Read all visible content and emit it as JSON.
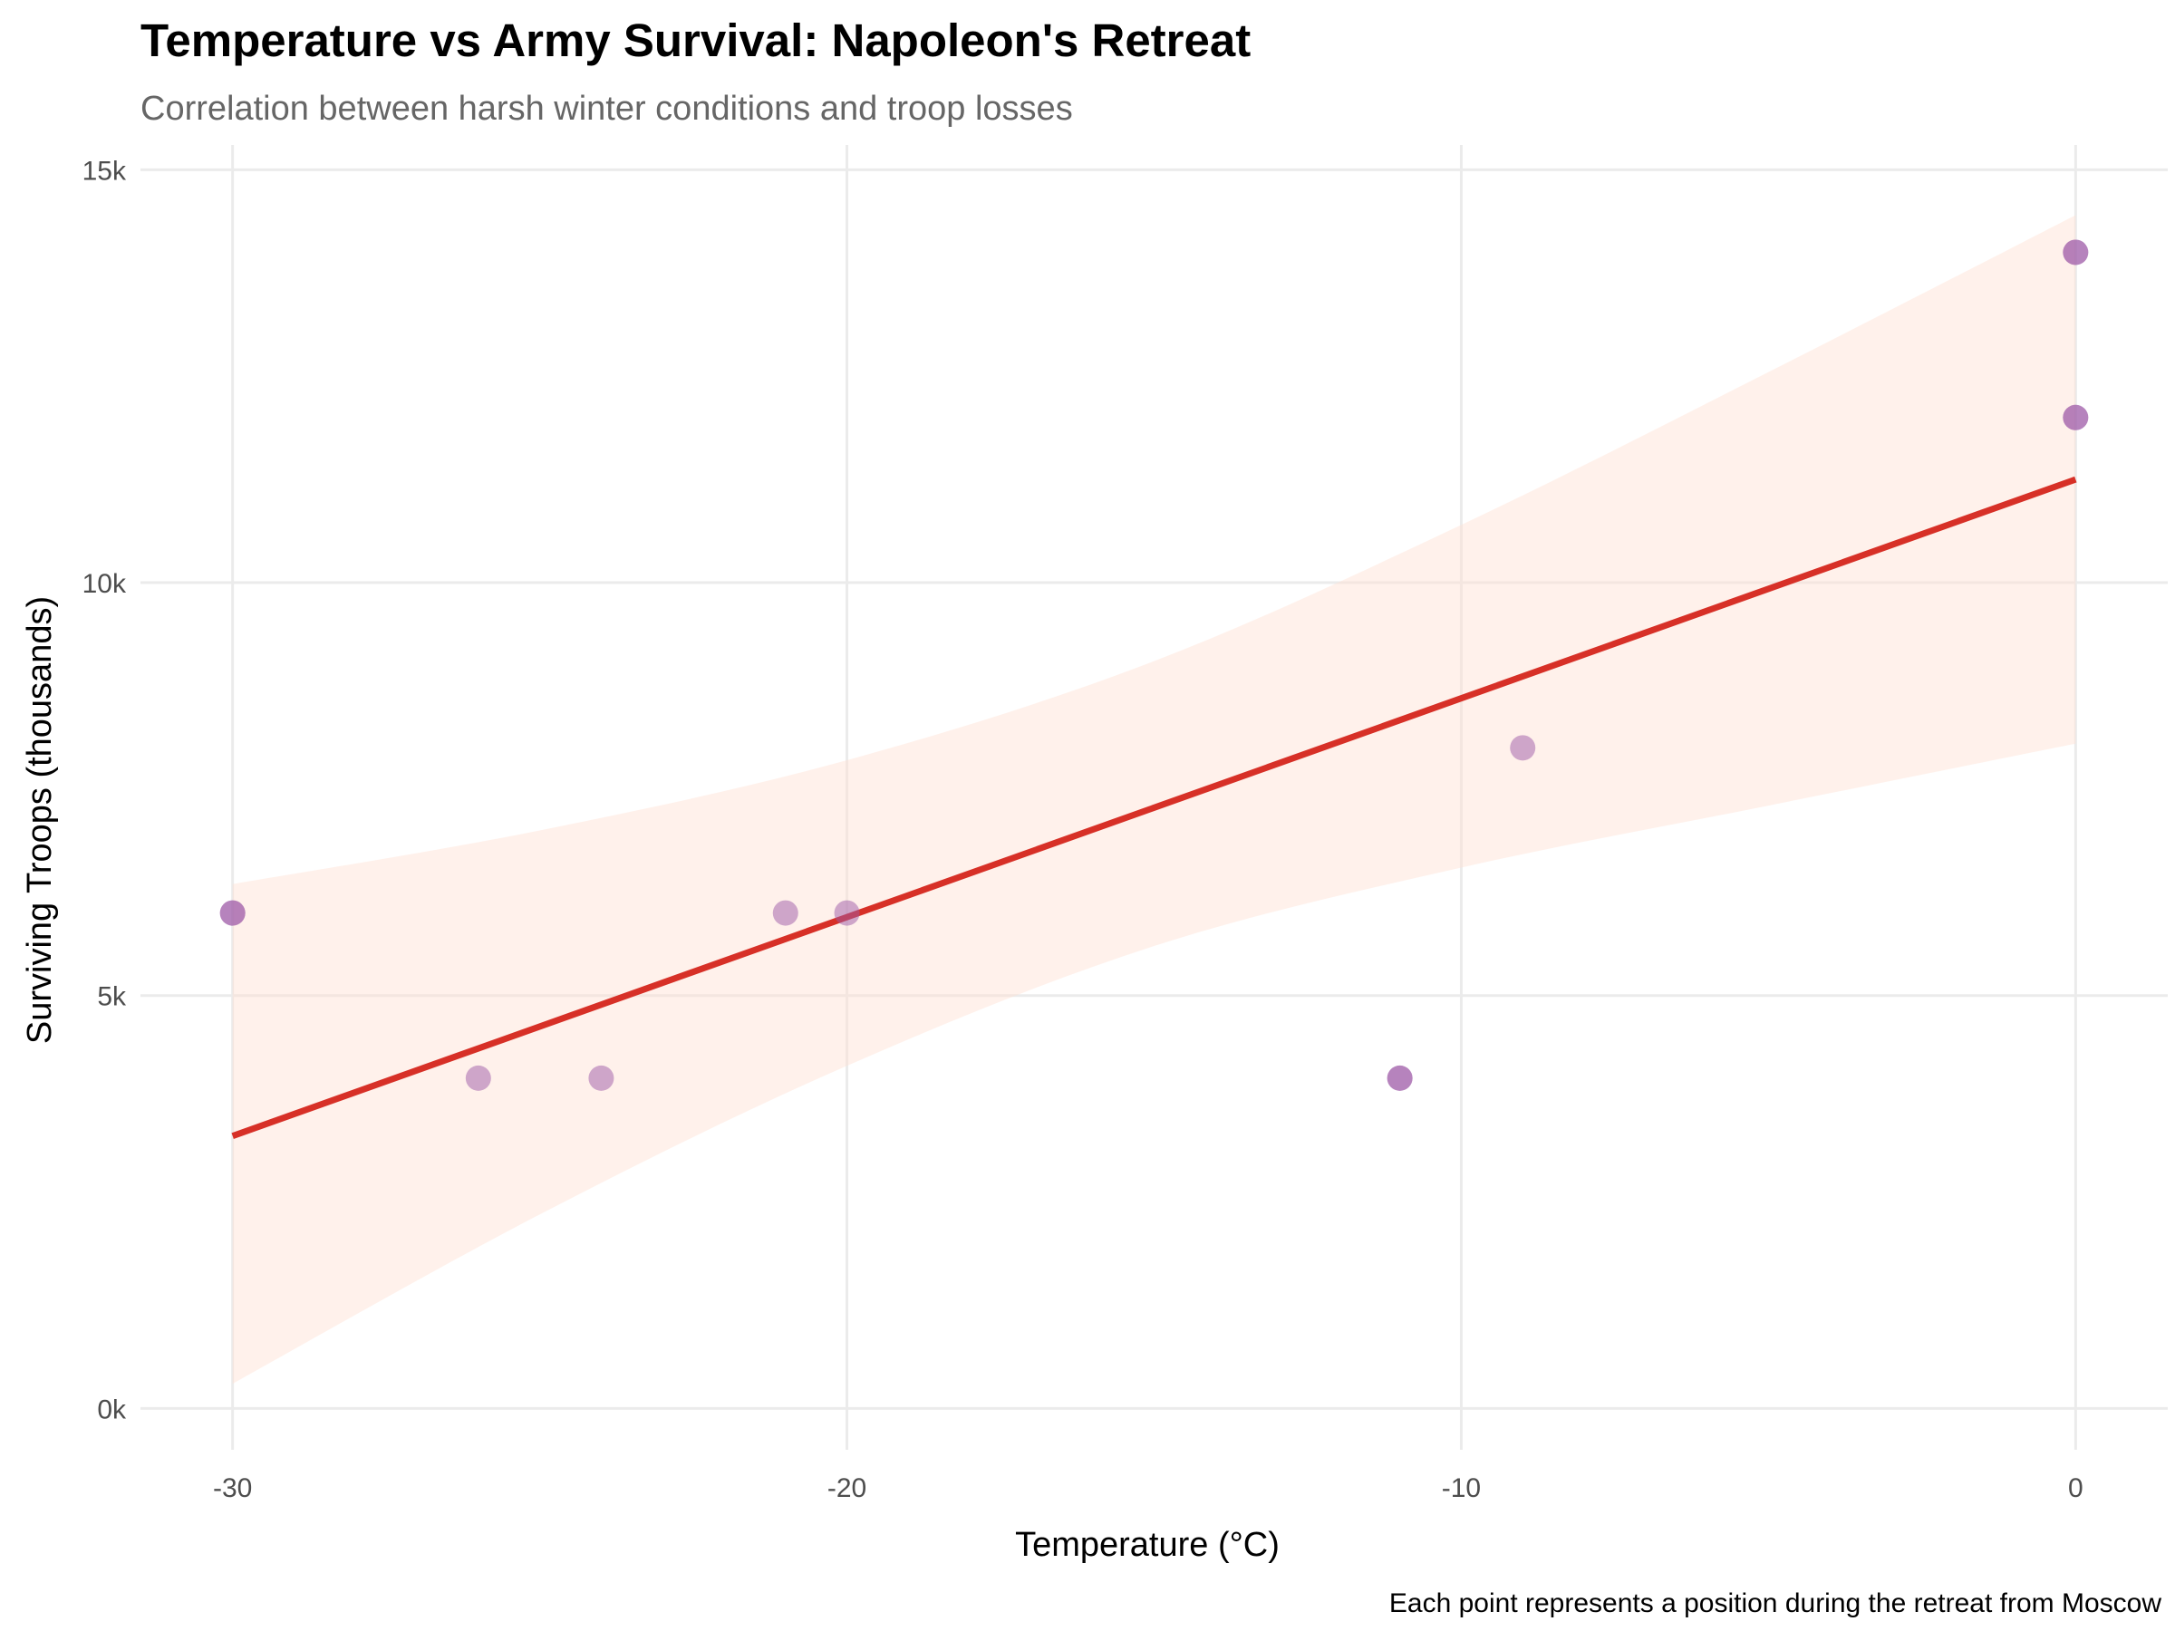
{
  "chart_data": {
    "type": "scatter",
    "title": "Temperature vs Army Survival: Napoleon's Retreat",
    "subtitle": "Correlation between harsh winter conditions and troop losses",
    "xlabel": "Temperature (°C)",
    "ylabel": "Surviving Troops (thousands)",
    "caption": "Each point represents a position during the retreat from Moscow",
    "xlim": [
      -31.5,
      1.5
    ],
    "ylim": [
      -500,
      15300
    ],
    "x_ticks": [
      {
        "value": -30,
        "label": "-30"
      },
      {
        "value": -20,
        "label": "-20"
      },
      {
        "value": -10,
        "label": "-10"
      },
      {
        "value": 0,
        "label": "0"
      }
    ],
    "y_ticks": [
      {
        "value": 0,
        "label": "0k"
      },
      {
        "value": 5000,
        "label": "5k"
      },
      {
        "value": 10000,
        "label": "10k"
      },
      {
        "value": 15000,
        "label": "15k"
      }
    ],
    "grid": true,
    "points": [
      {
        "x": 0,
        "y": 14000
      },
      {
        "x": 0,
        "y": 14000
      },
      {
        "x": 0,
        "y": 12000
      },
      {
        "x": 0,
        "y": 12000
      },
      {
        "x": -9,
        "y": 8000
      },
      {
        "x": -21,
        "y": 6000
      },
      {
        "x": -20,
        "y": 6000
      },
      {
        "x": -11,
        "y": 4000
      },
      {
        "x": -11,
        "y": 4000
      },
      {
        "x": -26,
        "y": 4000
      },
      {
        "x": -24,
        "y": 4000
      },
      {
        "x": -30,
        "y": 6000
      },
      {
        "x": -30,
        "y": 6000
      }
    ],
    "trend": {
      "method": "linear",
      "x": [
        -30,
        0
      ],
      "y": [
        3300,
        11250
      ]
    },
    "confidence_band": [
      {
        "x": -30,
        "lower": 300,
        "upper": 6350
      },
      {
        "x": -25,
        "lower": 2350,
        "upper": 7000
      },
      {
        "x": -20,
        "lower": 4150,
        "upper": 7850
      },
      {
        "x": -15,
        "lower": 5600,
        "upper": 9050
      },
      {
        "x": -10,
        "lower": 6550,
        "upper": 10700
      },
      {
        "x": -5,
        "lower": 7300,
        "upper": 12550
      },
      {
        "x": 0,
        "lower": 8050,
        "upper": 14450
      }
    ],
    "colors": {
      "points": "#9e5aa8",
      "trend": "#d73027",
      "band": "#fee0d2"
    }
  }
}
